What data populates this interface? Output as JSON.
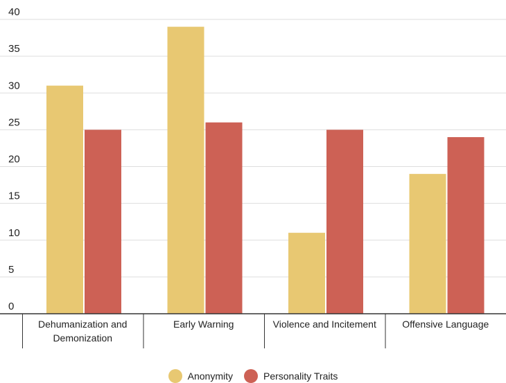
{
  "chart_data": {
    "type": "bar",
    "categories": [
      [
        "Dehumanization and",
        "Demonization"
      ],
      [
        "Early Warning"
      ],
      [
        "Violence and Incitement"
      ],
      [
        "Offensive Language"
      ]
    ],
    "series": [
      {
        "name": "Anonymity",
        "color": "#E8C872",
        "values": [
          31,
          39,
          11,
          19
        ]
      },
      {
        "name": "Personality Traits",
        "color": "#CD6155",
        "values": [
          25,
          26,
          25,
          24
        ]
      }
    ],
    "ylim": [
      0,
      40
    ],
    "yticks": [
      "0",
      "5",
      "10",
      "15",
      "20",
      "25",
      "30",
      "35",
      "40"
    ],
    "grid": true,
    "legend_position": "bottom-center",
    "title": "",
    "xlabel": "",
    "ylabel": ""
  }
}
